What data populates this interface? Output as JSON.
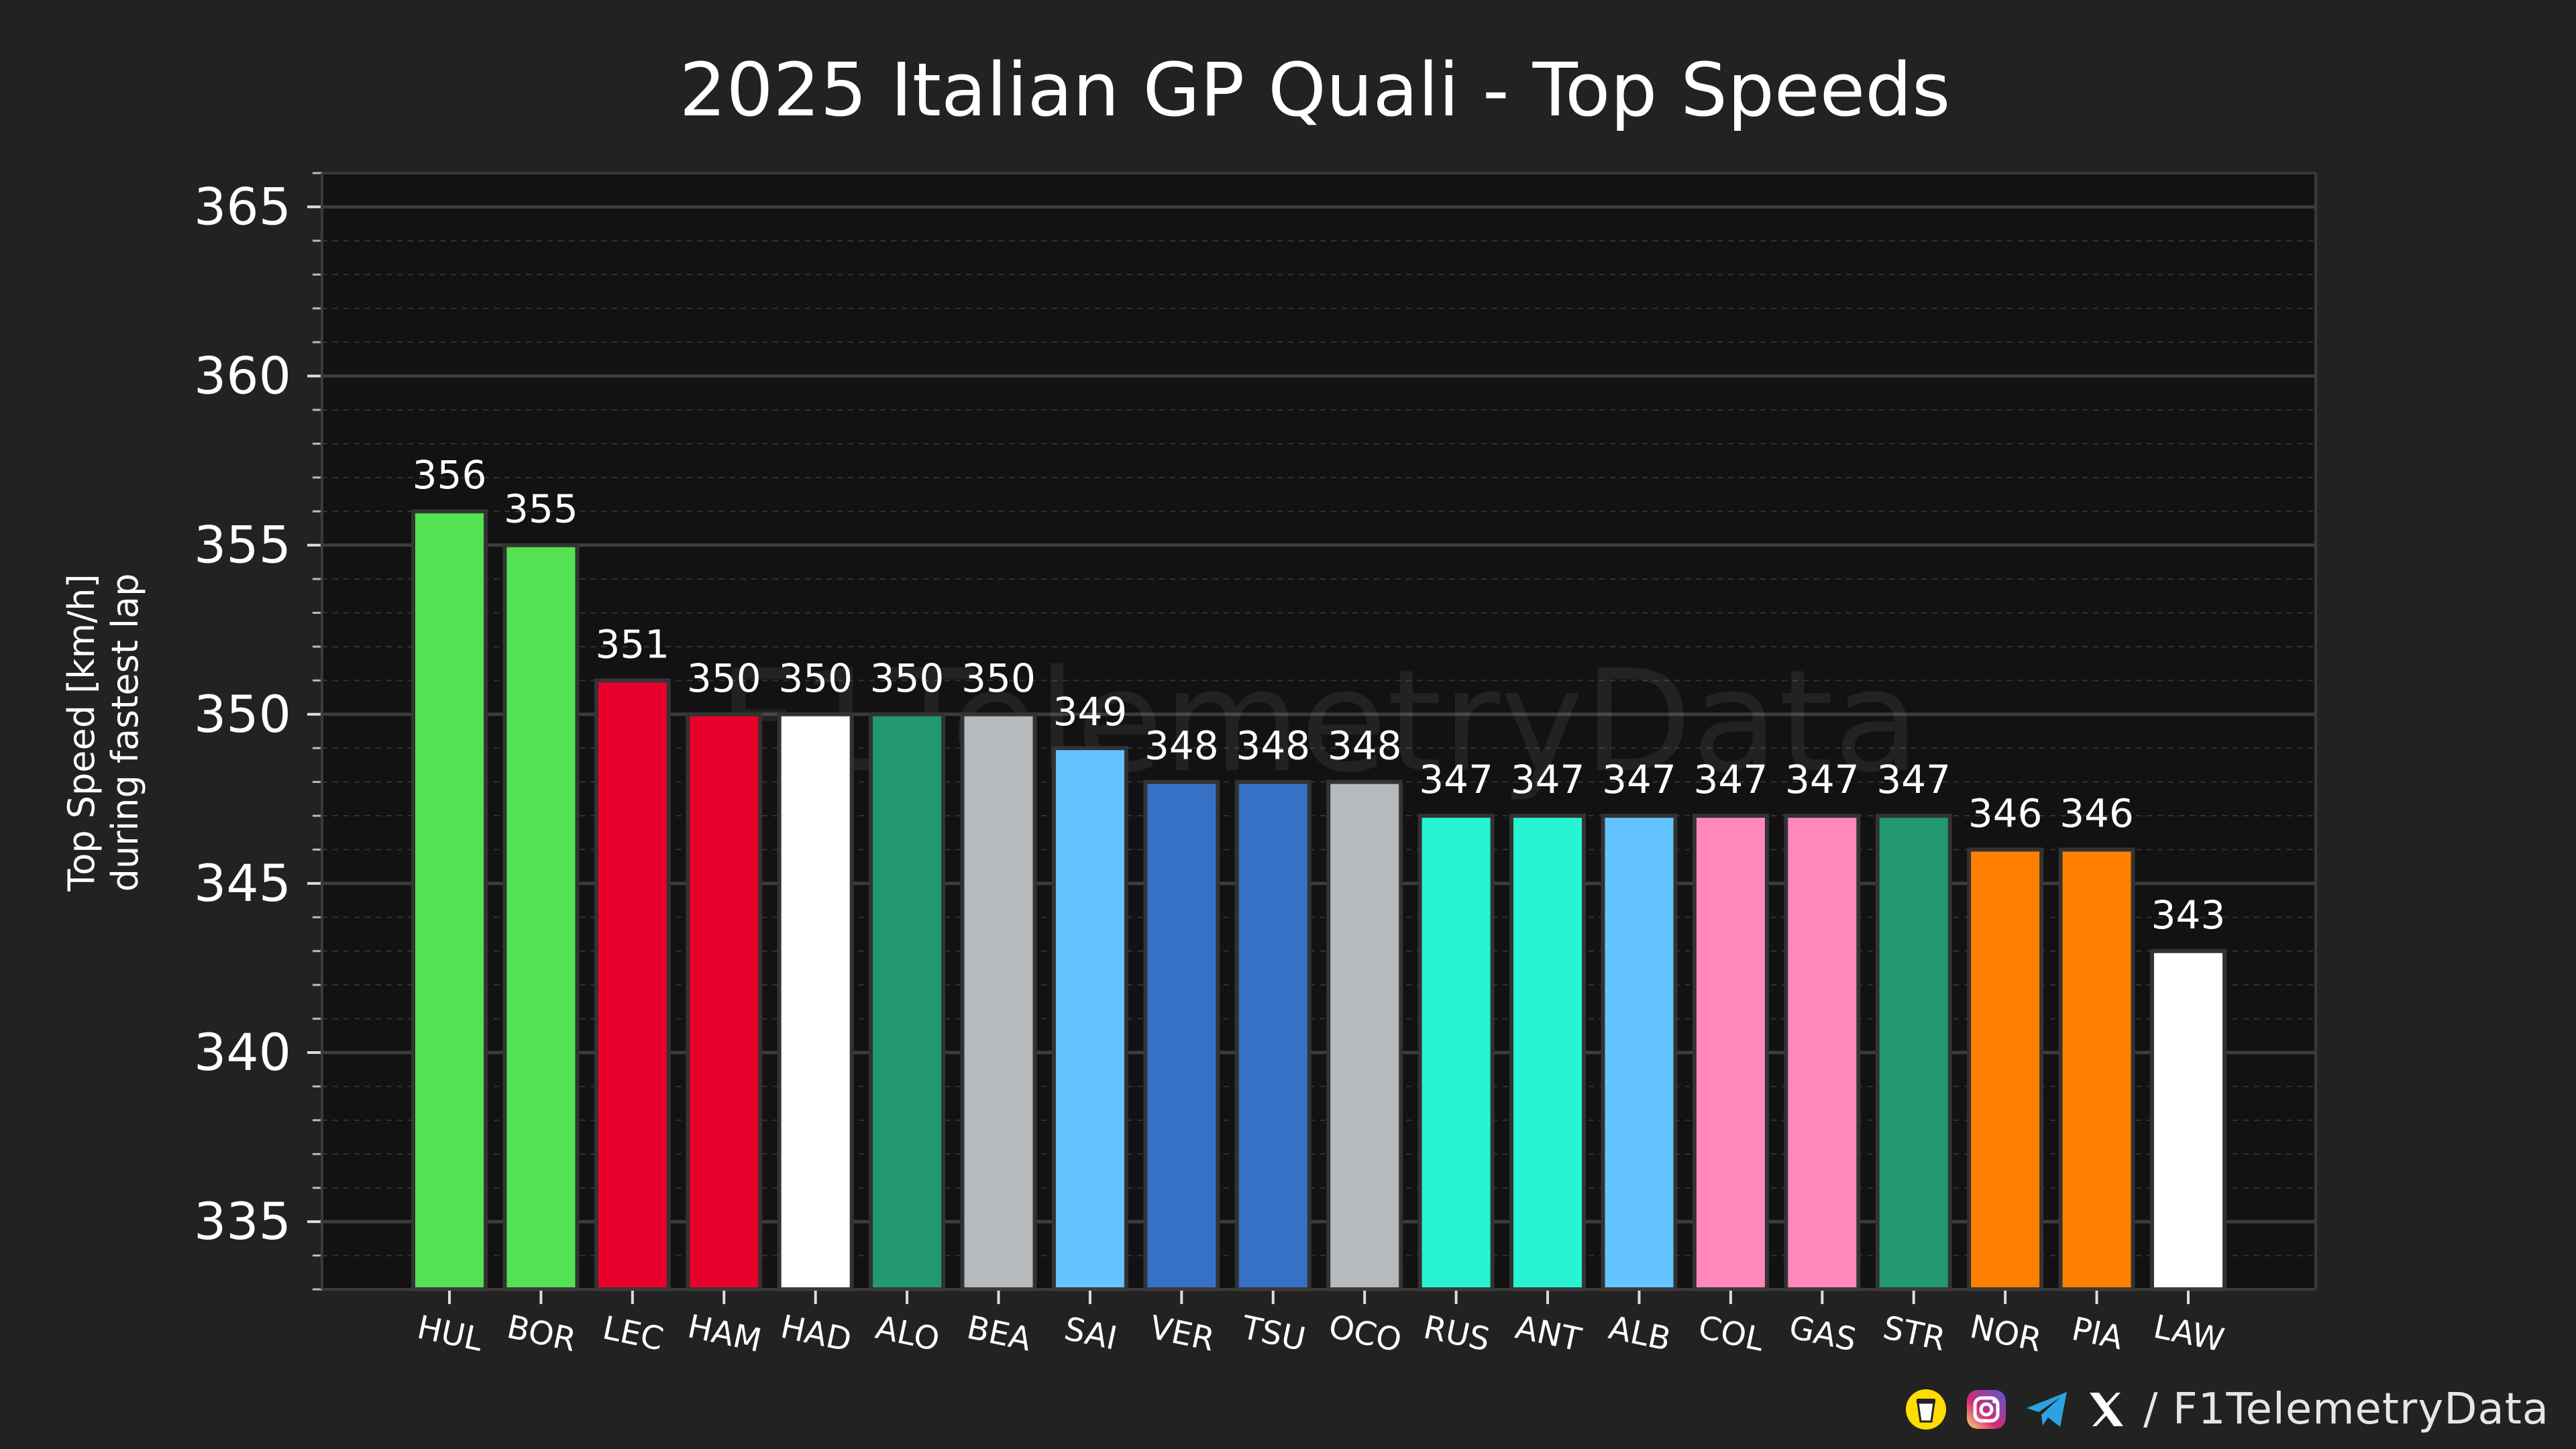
{
  "chart_data": {
    "type": "bar",
    "title": "2025 Italian GP Quali - Top Speeds",
    "ylabel_line1": "Top Speed [km/h]",
    "ylabel_line2": "during fastest lap",
    "xlabel": "",
    "ylim": [
      333,
      366
    ],
    "yticks": [
      335,
      340,
      345,
      350,
      355,
      360,
      365
    ],
    "minor_tick_step": 1,
    "grid": true,
    "watermark": "F1TelemetryData",
    "categories": [
      "HUL",
      "BOR",
      "LEC",
      "HAM",
      "HAD",
      "ALO",
      "BEA",
      "SAI",
      "VER",
      "TSU",
      "OCO",
      "RUS",
      "ANT",
      "ALB",
      "COL",
      "GAS",
      "STR",
      "NOR",
      "PIA",
      "LAW"
    ],
    "values": [
      356,
      355,
      351,
      350,
      350,
      350,
      350,
      349,
      348,
      348,
      348,
      347,
      347,
      347,
      347,
      347,
      347,
      346,
      346,
      343
    ],
    "colors": [
      "#52e252",
      "#52e252",
      "#e8002d",
      "#e8002d",
      "#ffffff",
      "#229971",
      "#b6babd",
      "#64c4ff",
      "#3671c6",
      "#3671c6",
      "#b6babd",
      "#27f4d2",
      "#27f4d2",
      "#64c4ff",
      "#ff87bc",
      "#ff87bc",
      "#229971",
      "#ff8000",
      "#ff8000",
      "#ffffff"
    ]
  },
  "footer": {
    "handle": "/ F1TelemetryData",
    "icons": [
      "coffee-cup-icon",
      "instagram-icon",
      "telegram-icon",
      "x-logo-icon"
    ]
  },
  "theme": {
    "background": "#222222",
    "plot_background": "#121212",
    "text": "#ffffff"
  }
}
